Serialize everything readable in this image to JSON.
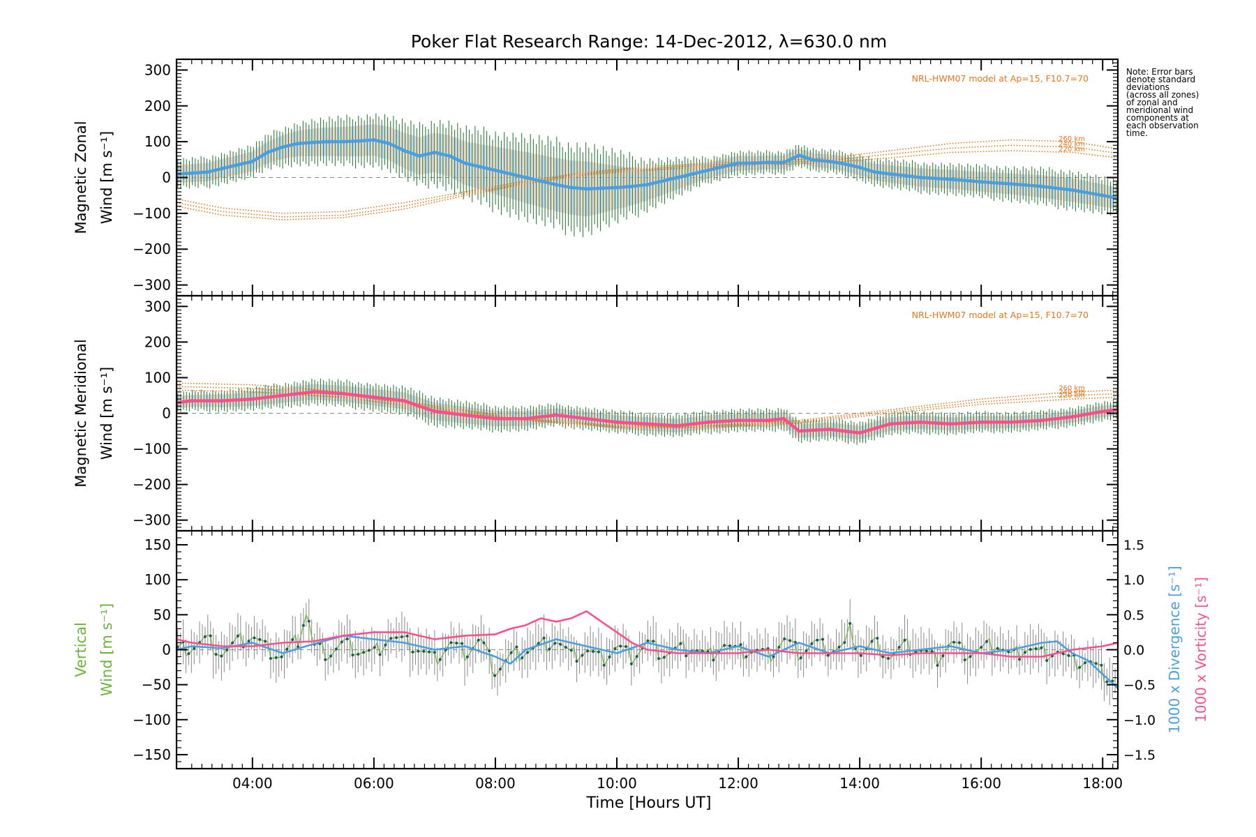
{
  "chart_data": {
    "type": "line",
    "title": "Poker Flat Research Range: 14-Dec-2012, λ=630.0 nm",
    "xlabel": "Time [Hours UT]",
    "xlim": [
      2.75,
      18.25
    ],
    "x_ticks": [
      "04:00",
      "06:00",
      "08:00",
      "10:00",
      "12:00",
      "14:00",
      "16:00",
      "18:00"
    ],
    "x_tick_values": [
      4,
      6,
      8,
      10,
      12,
      14,
      16,
      18
    ],
    "note": [
      "Note: Error bars",
      "denote standard",
      "deviations",
      "(across all zones)",
      "of zonal and",
      "meridional wind",
      "components at",
      "each observation",
      "time."
    ],
    "panels": [
      {
        "id": "zonal",
        "ylabel_line1": "Magnetic Zonal",
        "ylabel_line2": "Wind [m s⁻¹]",
        "ylim": [
          -330,
          330
        ],
        "yticks": [
          300,
          200,
          100,
          0,
          -100,
          -200,
          -300
        ],
        "ytick_labels": [
          "300",
          "200",
          "100",
          "0",
          "−100",
          "−200",
          "−300"
        ],
        "model_label": "NRL-HWM07 model at Ap=15, F10.7=70",
        "model_alt_labels": [
          "260 km",
          "240 km",
          "220 km"
        ],
        "mean_color": "#4a9fe0",
        "mean_series": {
          "x": [
            2.75,
            3.0,
            3.25,
            3.5,
            3.75,
            4.0,
            4.25,
            4.5,
            4.75,
            5.0,
            5.25,
            5.5,
            5.75,
            6.0,
            6.25,
            6.5,
            6.75,
            7.0,
            7.25,
            7.5,
            7.75,
            8.0,
            8.25,
            8.5,
            8.75,
            9.0,
            9.25,
            9.5,
            9.75,
            10.0,
            10.25,
            10.5,
            10.75,
            11.0,
            11.25,
            11.5,
            11.75,
            12.0,
            12.25,
            12.5,
            12.75,
            13.0,
            13.25,
            13.5,
            13.75,
            14.0,
            14.25,
            14.5,
            14.75,
            15.0,
            15.5,
            16.0,
            16.5,
            17.0,
            17.5,
            18.0,
            18.25
          ],
          "y": [
            10,
            12,
            15,
            25,
            35,
            45,
            70,
            85,
            95,
            98,
            100,
            100,
            102,
            105,
            95,
            75,
            60,
            70,
            60,
            40,
            30,
            20,
            10,
            0,
            -10,
            -20,
            -28,
            -32,
            -30,
            -28,
            -25,
            -20,
            -10,
            0,
            10,
            20,
            30,
            40,
            40,
            42,
            42,
            62,
            48,
            45,
            38,
            28,
            15,
            10,
            5,
            0,
            -5,
            -12,
            -18,
            -25,
            -35,
            -50,
            -58
          ]
        },
        "model_series": [
          {
            "name": "260 km",
            "x": [
              2.75,
              3.5,
              4.5,
              5.5,
              6.5,
              7.5,
              8.5,
              9.5,
              10.5,
              11.5,
              12.5,
              13.5,
              14.5,
              15.5,
              16.5,
              17.5,
              18.25
            ],
            "y": [
              -60,
              -85,
              -100,
              -95,
              -70,
              -40,
              -10,
              15,
              30,
              40,
              45,
              55,
              75,
              95,
              105,
              100,
              80
            ]
          },
          {
            "name": "240 km",
            "x": [
              2.75,
              3.5,
              4.5,
              5.5,
              6.5,
              7.5,
              8.5,
              9.5,
              10.5,
              11.5,
              12.5,
              13.5,
              14.5,
              15.5,
              16.5,
              17.5,
              18.25
            ],
            "y": [
              -70,
              -95,
              -110,
              -105,
              -80,
              -45,
              -15,
              12,
              25,
              35,
              40,
              48,
              65,
              82,
              90,
              85,
              68
            ]
          },
          {
            "name": "220 km",
            "x": [
              2.75,
              3.5,
              4.5,
              5.5,
              6.5,
              7.5,
              8.5,
              9.5,
              10.5,
              11.5,
              12.5,
              13.5,
              14.5,
              15.5,
              16.5,
              17.5,
              18.25
            ],
            "y": [
              -80,
              -105,
              -118,
              -112,
              -88,
              -50,
              -18,
              8,
              20,
              30,
              35,
              42,
              55,
              70,
              75,
              70,
              55
            ]
          }
        ],
        "error_bar_halfwidth": {
          "x": [
            2.75,
            4.0,
            5.0,
            6.0,
            6.75,
            7.5,
            8.5,
            9.5,
            10.5,
            11.5,
            12.5,
            13.5,
            14.5,
            16.0,
            17.5,
            18.25
          ],
          "y": [
            45,
            50,
            70,
            80,
            95,
            110,
            130,
            140,
            80,
            40,
            35,
            35,
            45,
            50,
            60,
            55
          ]
        }
      },
      {
        "id": "meridional",
        "ylabel_line1": "Magnetic Meridional",
        "ylabel_line2": "Wind [m s⁻¹]",
        "ylim": [
          -330,
          330
        ],
        "yticks": [
          300,
          200,
          100,
          0,
          -100,
          -200,
          -300
        ],
        "ytick_labels": [
          "300",
          "200",
          "100",
          "0",
          "−100",
          "−200",
          "−300"
        ],
        "model_label": "NRL-HWM07 model at Ap=15, F10.7=70",
        "model_alt_labels": [
          "260 km",
          "240 km",
          "220 km"
        ],
        "mean_color": "#ff4f8a",
        "mean_series": {
          "x": [
            2.75,
            3.0,
            3.5,
            4.0,
            4.5,
            5.0,
            5.5,
            6.0,
            6.5,
            6.75,
            7.0,
            7.5,
            8.0,
            8.5,
            9.0,
            9.5,
            10.0,
            10.5,
            11.0,
            11.5,
            12.0,
            12.5,
            12.75,
            13.0,
            13.5,
            14.0,
            14.5,
            15.0,
            15.5,
            16.0,
            16.5,
            17.0,
            17.5,
            18.0,
            18.25
          ],
          "y": [
            30,
            35,
            35,
            40,
            50,
            60,
            55,
            45,
            35,
            20,
            5,
            -5,
            -15,
            -15,
            -5,
            -15,
            -25,
            -30,
            -35,
            -25,
            -20,
            -20,
            -15,
            -50,
            -45,
            -55,
            -30,
            -25,
            -30,
            -25,
            -25,
            -20,
            -10,
            5,
            10
          ]
        },
        "model_series": [
          {
            "name": "260 km",
            "x": [
              2.75,
              4.0,
              5.5,
              7.0,
              8.5,
              10.0,
              11.5,
              13.0,
              14.5,
              16.0,
              17.5,
              18.25
            ],
            "y": [
              85,
              80,
              60,
              20,
              -15,
              -35,
              -35,
              -20,
              10,
              40,
              60,
              65
            ]
          },
          {
            "name": "240 km",
            "x": [
              2.75,
              4.0,
              5.5,
              7.0,
              8.5,
              10.0,
              11.5,
              13.0,
              14.5,
              16.0,
              17.5,
              18.25
            ],
            "y": [
              75,
              70,
              52,
              15,
              -18,
              -38,
              -38,
              -24,
              5,
              32,
              50,
              55
            ]
          },
          {
            "name": "220 km",
            "x": [
              2.75,
              4.0,
              5.5,
              7.0,
              8.5,
              10.0,
              11.5,
              13.0,
              14.5,
              16.0,
              17.5,
              18.25
            ],
            "y": [
              65,
              60,
              45,
              10,
              -20,
              -40,
              -40,
              -28,
              0,
              25,
              40,
              45
            ]
          }
        ],
        "error_bar_halfwidth": {
          "x": [
            2.75,
            5.0,
            7.0,
            9.0,
            11.0,
            13.0,
            15.0,
            17.0,
            18.25
          ],
          "y": [
            30,
            40,
            45,
            35,
            35,
            35,
            35,
            30,
            30
          ]
        }
      },
      {
        "id": "vertical",
        "ylabel_line1": "Vertical",
        "ylabel_line2": "Wind [m s⁻¹]",
        "ylabel_color": "#6cb33c",
        "ylim": [
          -170,
          170
        ],
        "yticks": [
          150,
          100,
          50,
          0,
          -50,
          -100,
          -150
        ],
        "ytick_labels": [
          "150",
          "100",
          "50",
          "0",
          "−50",
          "−100",
          "−150"
        ],
        "right_ylim": [
          -1.7,
          1.7
        ],
        "right_yticks": [
          1.5,
          1.0,
          0.5,
          0.0,
          -0.5,
          -1.0,
          -1.5
        ],
        "right_ytick_labels": [
          "1.5",
          "1.0",
          "0.5",
          "0.0",
          "−0.5",
          "−1.0",
          "−1.5"
        ],
        "right_label_1": "1000 x Divergence [s⁻¹]",
        "right_label_1_color": "#4a9fe0",
        "right_label_2": "1000 x Vorticity [s⁻¹]",
        "right_label_2_color": "#ff4f8a",
        "vertical_wind_color": "#6cb33c",
        "vertical_wind": {
          "x": [
            2.75,
            3.0,
            3.25,
            3.5,
            3.75,
            4.0,
            4.25,
            4.5,
            4.75,
            4.9,
            5.0,
            5.25,
            5.5,
            5.75,
            6.0,
            6.25,
            6.5,
            6.75,
            7.0,
            7.25,
            7.5,
            7.75,
            8.0,
            8.25,
            8.5,
            8.75,
            9.0,
            9.25,
            9.5,
            9.75,
            10.0,
            10.25,
            10.5,
            10.75,
            11.0,
            11.25,
            11.5,
            11.75,
            12.0,
            12.25,
            12.5,
            12.75,
            13.0,
            13.25,
            13.5,
            13.75,
            13.85,
            14.0,
            14.25,
            14.5,
            14.75,
            15.0,
            15.25,
            15.5,
            15.75,
            16.0,
            16.25,
            16.5,
            16.75,
            17.0,
            17.25,
            17.5,
            17.75,
            18.0,
            18.25
          ],
          "y": [
            -2,
            5,
            15,
            -5,
            10,
            20,
            0,
            -10,
            15,
            58,
            5,
            -5,
            10,
            0,
            -5,
            20,
            10,
            0,
            -15,
            10,
            -5,
            15,
            -30,
            -10,
            0,
            5,
            15,
            -10,
            0,
            -15,
            5,
            -10,
            10,
            -5,
            0,
            5,
            -10,
            10,
            -5,
            0,
            -10,
            15,
            -5,
            10,
            0,
            5,
            30,
            -5,
            10,
            -10,
            5,
            0,
            -15,
            10,
            -5,
            0,
            10,
            -10,
            5,
            -5,
            0,
            -20,
            -15,
            -35,
            -45
          ]
        },
        "divergence_series": {
          "x": [
            2.75,
            3.0,
            3.5,
            4.0,
            4.5,
            5.0,
            5.5,
            6.0,
            6.5,
            7.0,
            7.5,
            8.0,
            8.25,
            8.5,
            9.0,
            9.5,
            10.0,
            10.5,
            11.0,
            11.5,
            12.0,
            12.5,
            13.0,
            13.5,
            14.0,
            14.5,
            15.0,
            15.5,
            16.0,
            16.5,
            17.0,
            17.25,
            17.5,
            17.75,
            18.0,
            18.25
          ],
          "y": [
            0.0,
            0.05,
            0.02,
            0.1,
            -0.05,
            0.08,
            0.2,
            0.15,
            0.1,
            0.0,
            0.05,
            -0.1,
            -0.2,
            0.0,
            0.15,
            0.05,
            -0.05,
            0.1,
            0.0,
            -0.05,
            0.05,
            -0.1,
            0.1,
            -0.05,
            0.05,
            -0.05,
            0.0,
            0.05,
            -0.05,
            0.0,
            0.1,
            0.12,
            -0.05,
            -0.15,
            -0.35,
            -0.55
          ]
        },
        "vorticity_series": {
          "x": [
            2.75,
            3.0,
            3.5,
            4.0,
            4.5,
            5.0,
            5.5,
            6.0,
            6.5,
            7.0,
            7.5,
            8.0,
            8.25,
            8.5,
            8.75,
            9.0,
            9.25,
            9.5,
            9.75,
            10.0,
            10.25,
            10.5,
            11.0,
            11.5,
            12.0,
            12.5,
            13.0,
            13.5,
            14.0,
            14.5,
            15.0,
            15.5,
            16.0,
            16.5,
            17.0,
            17.5,
            18.0,
            18.25
          ],
          "y": [
            0.15,
            0.1,
            0.05,
            0.05,
            0.1,
            0.12,
            0.2,
            0.25,
            0.25,
            0.15,
            0.2,
            0.22,
            0.3,
            0.35,
            0.45,
            0.4,
            0.45,
            0.55,
            0.4,
            0.25,
            0.1,
            0.0,
            -0.05,
            -0.05,
            -0.05,
            0.0,
            -0.05,
            -0.05,
            -0.05,
            -0.08,
            -0.05,
            -0.05,
            -0.05,
            -0.1,
            -0.1,
            0.0,
            0.05,
            0.1
          ]
        }
      }
    ]
  }
}
